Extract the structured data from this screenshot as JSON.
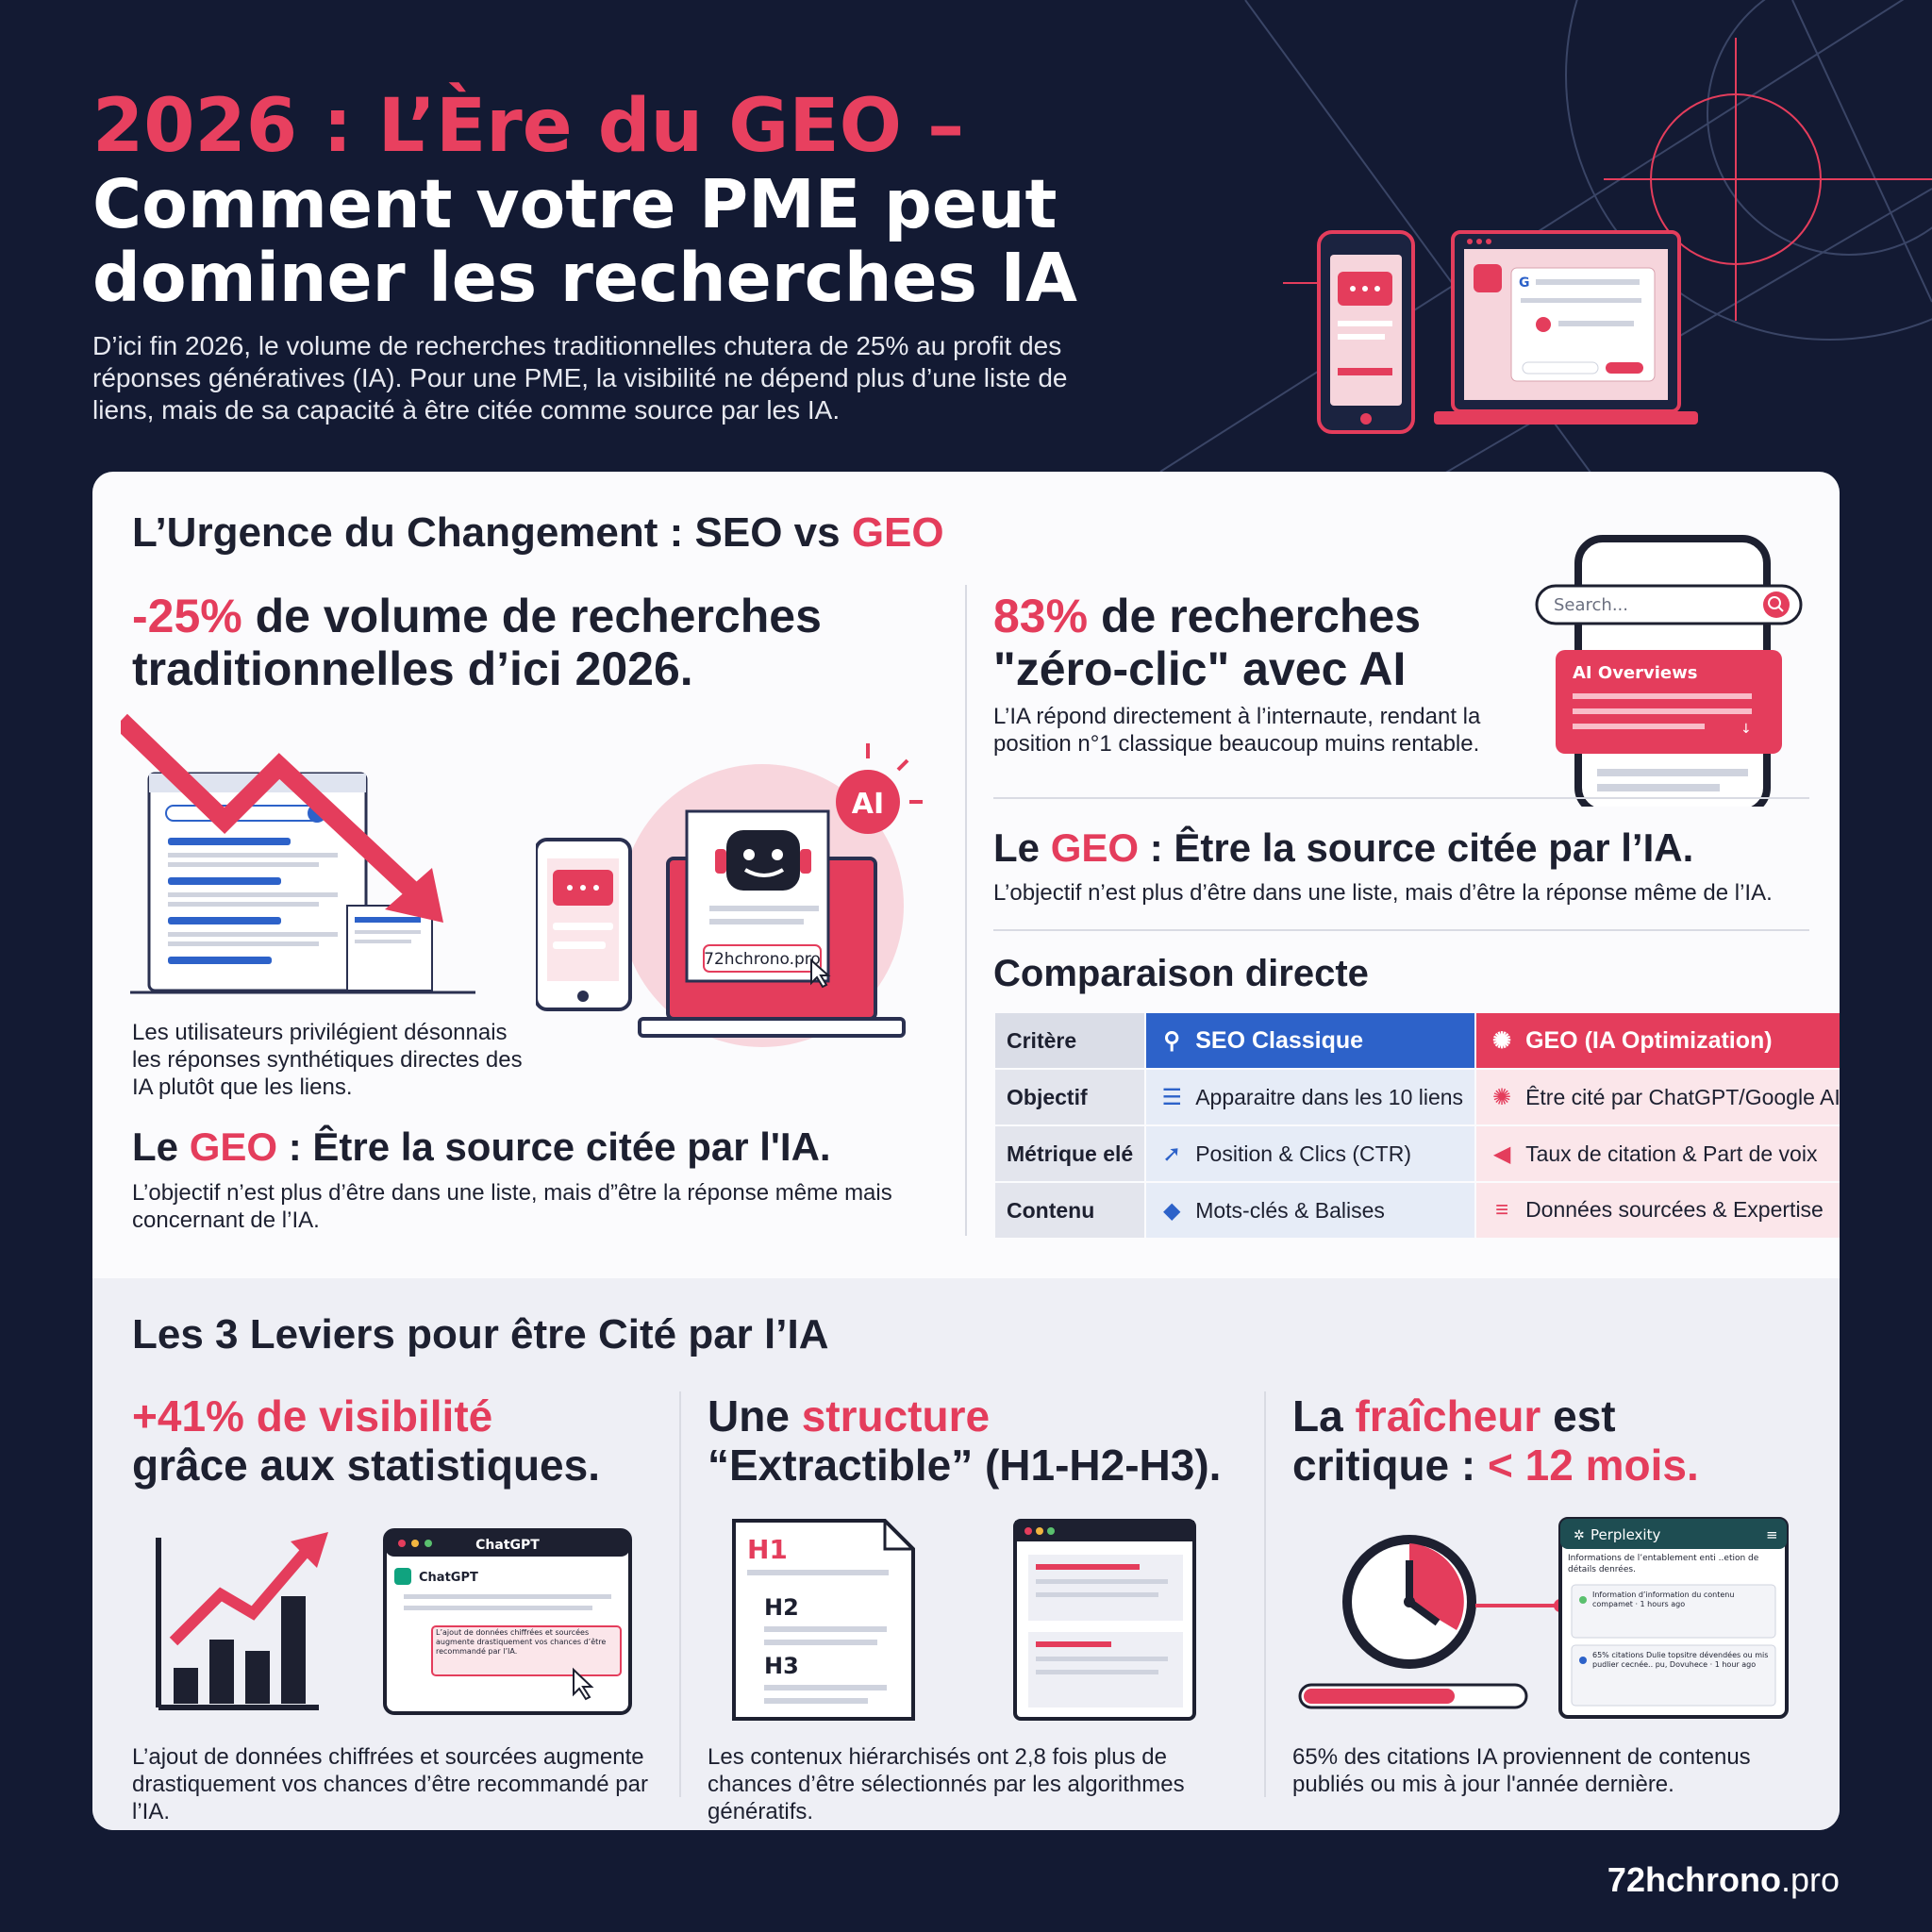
{
  "header": {
    "title_line1": "2026 : L’Ère du GEO –",
    "title_line2a": "Comment votre PME peut",
    "title_line2b": "dominer les recherches IA",
    "intro": "D’ici fin 2026, le volume de recherches traditionnelles chutera de 25% au profit des réponses génératives (IA). Pour une PME, la visibilité ne dépend plus d’une liste de liens, mais de sa capacité à être citée comme source par les IA."
  },
  "urgence": {
    "title_prefix": "L’Urgence du Changement : SEO vs ",
    "title_accent": "GEO",
    "stat1_accent": "-25%",
    "stat1_rest": " de volume de recherches traditionnelles d’ici 2026.",
    "stat1_caption": "Les utilisateurs privilégient désonnais les réponses synthétiques directes des IA plutôt que les liens.",
    "geo_left_prefix": "Le ",
    "geo_left_accent": "GEO",
    "geo_left_rest": " : Être la source citée par l'IA.",
    "geo_left_caption": "L’objectif n’est plus d’être dans une liste, mais d”être la réponse même mais concernant de l’IA.",
    "stat2_accent": "83%",
    "stat2_rest_1": " de recherches",
    "stat2_rest_2": "\"zéro-clic\" avec AI",
    "stat2_caption": "L’IA répond directement à l’internaute, rendant la position n°1 classique beaucoup muins rentable.",
    "geo_right_prefix": "Le ",
    "geo_right_accent": "GEO",
    "geo_right_rest": " : Être la source citée par l’IA.",
    "geo_right_caption": "L’objectif n’est plus d’être dans une liste, mais d’être la réponse même de l’IA."
  },
  "illustrations": {
    "ai_badge": "AI",
    "site_tag": "72hchrono.pro",
    "search_placeholder": "Search...",
    "ai_overviews": "AI Overviews",
    "chatgpt_title": "ChatGPT",
    "chatgpt_label": "ChatGPT",
    "chatgpt_snippet": "L’ajout de données chiffrées et sourcées augmente drastiquement vos chances d’être recommandé par l’IA.",
    "h1": "H1",
    "h2": "H2",
    "h3": "H3",
    "perplexity_title": "Perplexity",
    "perplexity_subtitle": "Informations de l’entablement enti ..etion de détails denrées.",
    "perplexity_item1": "Information d’information du contenu compamet · 1 hours ago",
    "perplexity_item2": "65% citations Dulie topsitre dévendées ou mis pudlier cecnée.. pu, Dovuhece · 1 hour ago"
  },
  "comparison": {
    "title": "Comparaison directe",
    "headers": {
      "crit": "Critère",
      "seo": "SEO Classique",
      "geo": "GEO (IA Optimization)"
    },
    "rows": [
      {
        "crit": "Objectif",
        "seo": "Apparaitre dans les 10 liens",
        "geo": "Être cité par ChatGPT/Google AI"
      },
      {
        "crit": "Métrique elé",
        "seo": "Position & Clics (CTR)",
        "geo": "Taux de citation & Part de voix"
      },
      {
        "crit": "Contenu",
        "seo": "Mots-clés & Balises",
        "geo": "Données sourcées & Expertise"
      }
    ]
  },
  "leviers": {
    "title": "Les 3 Leviers pour être Cité par l’IA",
    "l1_accent": "+41% de visibilité",
    "l1_rest": "grâce aux statistiques.",
    "l1_caption": "L’ajout de données chiffrées et sourcées augmente drastiquement vos chances d’être recommandé par l’IA.",
    "l2_prefix": "Une ",
    "l2_accent": "structure",
    "l2_rest": "“Extractible” (H1-H2-H3).",
    "l2_caption": "Les contenux hiérarchisés ont 2,8 fois plus de chances d’être sélectionnés par les algorithmes génératifs.",
    "l3_prefix": "La ",
    "l3_accent": "fraîcheur",
    "l3_mid": " est",
    "l3_line2_prefix": "critique : ",
    "l3_line2_accent": "< 12 mois.",
    "l3_caption": "65% des citations IA proviennent de contenus publiés ou mis à jour l'année dernière."
  },
  "footer": {
    "brand_bold": "72hchrono",
    "brand_light": ".pro"
  },
  "colors": {
    "accent": "#e43d5c",
    "blue": "#2d62c9",
    "navy": "#131a33"
  },
  "icons": [
    "search-icon",
    "openai-icon",
    "list-icon",
    "cursor-icon",
    "tag-icon",
    "megaphone-icon",
    "database-icon",
    "clock-icon",
    "chat-bubble-icon",
    "robot-icon",
    "down-arrow-icon",
    "growth-chart-icon"
  ]
}
